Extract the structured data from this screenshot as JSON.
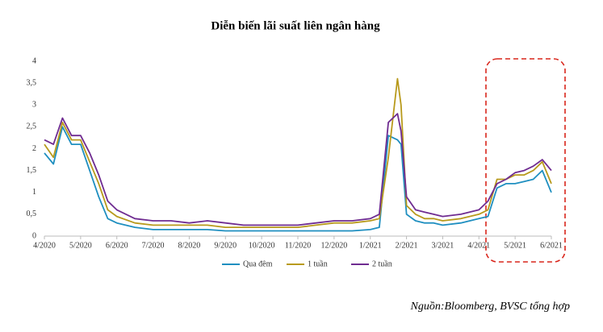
{
  "chart_data": {
    "type": "line",
    "title": "Diễn biến lãi suất liên ngân hàng",
    "source": "Nguồn:Bloomberg, BVSC tổng hợp",
    "x": [
      0,
      0.25,
      0.5,
      0.75,
      1,
      1.25,
      1.5,
      1.75,
      2,
      2.5,
      3,
      3.5,
      4,
      4.5,
      5,
      5.5,
      6,
      6.5,
      7,
      7.5,
      8,
      8.5,
      9,
      9.25,
      9.5,
      9.75,
      9.85,
      10,
      10.25,
      10.5,
      10.75,
      11,
      11.5,
      12,
      12.25,
      12.5,
      12.75,
      13,
      13.25,
      13.5,
      13.75,
      14
    ],
    "series": [
      {
        "name": "Qua đêm",
        "color": "#1f8fc0",
        "values": [
          1.9,
          1.65,
          2.5,
          2.1,
          2.1,
          1.5,
          0.9,
          0.4,
          0.3,
          0.2,
          0.15,
          0.15,
          0.15,
          0.15,
          0.12,
          0.12,
          0.12,
          0.12,
          0.12,
          0.12,
          0.12,
          0.12,
          0.15,
          0.2,
          2.3,
          2.2,
          2.1,
          0.5,
          0.35,
          0.3,
          0.3,
          0.25,
          0.3,
          0.4,
          0.45,
          1.1,
          1.2,
          1.2,
          1.25,
          1.3,
          1.5,
          1.0
        ]
      },
      {
        "name": "1 tuần",
        "color": "#b89a1c",
        "values": [
          2.1,
          1.8,
          2.6,
          2.2,
          2.2,
          1.7,
          1.2,
          0.6,
          0.45,
          0.3,
          0.25,
          0.25,
          0.25,
          0.25,
          0.2,
          0.2,
          0.2,
          0.2,
          0.2,
          0.25,
          0.3,
          0.3,
          0.35,
          0.4,
          1.8,
          3.6,
          3.0,
          0.7,
          0.5,
          0.4,
          0.4,
          0.35,
          0.4,
          0.5,
          0.6,
          1.3,
          1.3,
          1.4,
          1.4,
          1.5,
          1.7,
          1.2
        ]
      },
      {
        "name": "2 tuần",
        "color": "#6f2c91",
        "values": [
          2.2,
          2.1,
          2.7,
          2.3,
          2.3,
          1.9,
          1.4,
          0.8,
          0.6,
          0.4,
          0.35,
          0.35,
          0.3,
          0.35,
          0.3,
          0.25,
          0.25,
          0.25,
          0.25,
          0.3,
          0.35,
          0.35,
          0.4,
          0.5,
          2.6,
          2.8,
          2.4,
          0.9,
          0.6,
          0.55,
          0.5,
          0.45,
          0.5,
          0.6,
          0.8,
          1.2,
          1.3,
          1.45,
          1.5,
          1.6,
          1.75,
          1.5
        ]
      }
    ],
    "xlim": [
      0,
      14
    ],
    "xticks": [
      {
        "value": 0,
        "label": "4/2020"
      },
      {
        "value": 1,
        "label": "5/2020"
      },
      {
        "value": 2,
        "label": "6/2020"
      },
      {
        "value": 3,
        "label": "7/2020"
      },
      {
        "value": 4,
        "label": "8/2020"
      },
      {
        "value": 5,
        "label": "9/2020"
      },
      {
        "value": 6,
        "label": "10/2020"
      },
      {
        "value": 7,
        "label": "11/2020"
      },
      {
        "value": 8,
        "label": "12/2020"
      },
      {
        "value": 9,
        "label": "1/2021"
      },
      {
        "value": 10,
        "label": "2/2021"
      },
      {
        "value": 11,
        "label": "3/2021"
      },
      {
        "value": 12,
        "label": "4/2021"
      },
      {
        "value": 13,
        "label": "5/2021"
      },
      {
        "value": 14,
        "label": "6/2021"
      }
    ],
    "ylim": [
      0,
      4
    ],
    "yticks": [
      0,
      {
        "value": 0.5,
        "label": "0,5"
      },
      1,
      {
        "value": 1.5,
        "label": "1,5"
      },
      2,
      {
        "value": 2.5,
        "label": "2,5"
      },
      3,
      {
        "value": 3.5,
        "label": "3,5"
      },
      4
    ],
    "grid": false,
    "legend": "bottom"
  }
}
